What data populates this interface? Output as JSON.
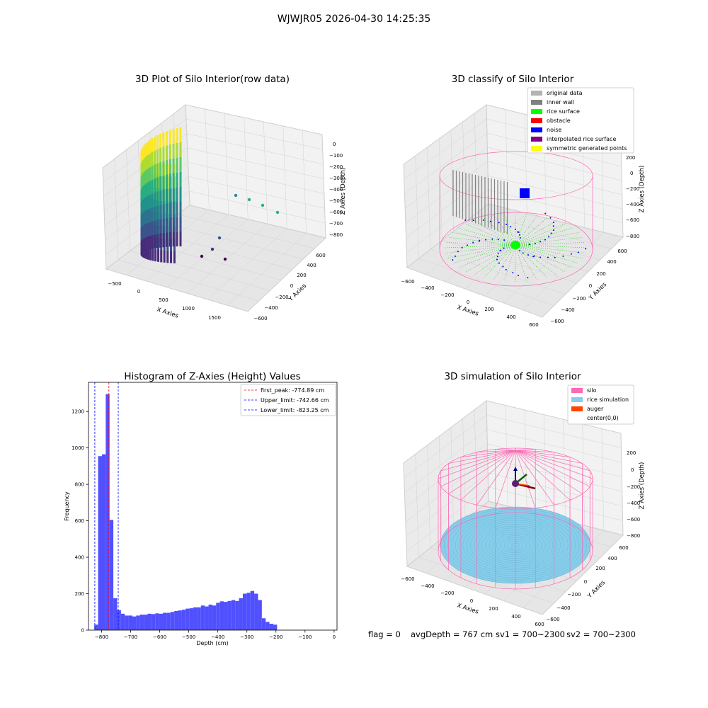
{
  "figure": {
    "suptitle": "WJWJR05 2026-04-30 14:25:35",
    "footer": {
      "flag": "flag = 0",
      "avg_depth": "avgDepth = 767 cm",
      "sv1": "sv1 = 700~2300",
      "sv2": "sv2 = 700~2300"
    }
  },
  "colors": {
    "hist_bar": "#5050ff",
    "red_line": "#ff0000",
    "blue_line": "#0000ff",
    "pane": "#f2f2f2",
    "grid": "#d0d0d0",
    "silo_pink": "#ff69b4",
    "rice_sim": "#87ceeb",
    "auger": "#ff4500"
  },
  "chart_data": [
    {
      "type": "scatter",
      "title": "3D Plot of Silo Interior(row data)",
      "xlabel": "X Axies",
      "ylabel": "Y Axies",
      "zlabel": "Z Axies (Depth)",
      "x_ticks": [
        "−500",
        "0",
        "500",
        "1000",
        "1500"
      ],
      "y_ticks": [
        "−600",
        "−400",
        "−200",
        "0",
        "200",
        "400",
        "600"
      ],
      "z_ticks": [
        "0",
        "−100",
        "−200",
        "−300",
        "−400",
        "−500",
        "−600",
        "−700",
        "−800"
      ],
      "colormap": "viridis",
      "projection": "3d"
    },
    {
      "type": "scatter",
      "title": "3D classify of Silo Interior",
      "xlabel": "X Axies",
      "ylabel": "Y Axies",
      "zlabel": "Z Axies (Depth)",
      "x_ticks": [
        "−600",
        "−400",
        "−200",
        "0",
        "200",
        "400",
        "600"
      ],
      "y_ticks": [
        "−600",
        "−400",
        "−200",
        "0",
        "200",
        "400",
        "600"
      ],
      "z_ticks": [
        "200",
        "0",
        "−200",
        "−400",
        "−600",
        "−800"
      ],
      "legend": [
        {
          "label": "original data",
          "color": "#b3b3b3"
        },
        {
          "label": "inner wall",
          "color": "#808080"
        },
        {
          "label": "rice surface",
          "color": "#00ff00"
        },
        {
          "label": "obstacle",
          "color": "#ff0000"
        },
        {
          "label": "noise",
          "color": "#0000ff"
        },
        {
          "label": "interpolated rice surface",
          "color": "#800080"
        },
        {
          "label": "symmetric generated points",
          "color": "#ffff00"
        }
      ],
      "legend_position": "top-right",
      "projection": "3d"
    },
    {
      "type": "bar",
      "title": "Histogram of Z-Axies (Height) Values",
      "xlabel": "Depth (cm)",
      "ylabel": "Frequency",
      "xlim": [
        -845,
        10
      ],
      "ylim": [
        0,
        1360
      ],
      "x_ticks": [
        -800,
        -700,
        -600,
        -500,
        -400,
        -300,
        -200,
        -100,
        0
      ],
      "y_ticks": [
        0,
        200,
        400,
        600,
        800,
        1000,
        1200
      ],
      "bin_start": -825,
      "bin_width": 13.1,
      "values": [
        30,
        955,
        965,
        1295,
        605,
        175,
        110,
        90,
        80,
        80,
        75,
        80,
        85,
        85,
        90,
        88,
        92,
        90,
        95,
        95,
        100,
        105,
        108,
        112,
        118,
        120,
        125,
        125,
        135,
        130,
        140,
        135,
        150,
        158,
        155,
        160,
        165,
        160,
        175,
        200,
        205,
        215,
        200,
        165,
        65,
        45,
        35,
        30
      ],
      "vlines": [
        {
          "x": -774.89,
          "label": "first_peak: -774.89 cm",
          "color": "#ff0000"
        },
        {
          "x": -742.66,
          "label": "Upper_limit: -742.66 cm",
          "color": "#0000ff"
        },
        {
          "x": -823.25,
          "label": "Lower_limit: -823.25 cm",
          "color": "#0000ff"
        }
      ],
      "legend_position": "top-right"
    },
    {
      "type": "scatter",
      "title": "3D simulation of Silo Interior",
      "xlabel": "X Axies",
      "ylabel": "Y Axies",
      "zlabel": "Z Axies (Depth)",
      "x_ticks": [
        "−600",
        "−400",
        "−200",
        "0",
        "200",
        "400",
        "600"
      ],
      "y_ticks": [
        "−600",
        "−400",
        "−200",
        "0",
        "200",
        "400",
        "600"
      ],
      "z_ticks": [
        "200",
        "0",
        "−200",
        "−400",
        "−600",
        "−800"
      ],
      "legend": [
        {
          "label": "silo",
          "color": "#ff69b4"
        },
        {
          "label": "rice simulation",
          "color": "#87ceeb"
        },
        {
          "label": "auger",
          "color": "#ff4500"
        },
        {
          "label": "center(0,0)",
          "color": ""
        }
      ],
      "legend_position": "top-right",
      "projection": "3d"
    }
  ]
}
